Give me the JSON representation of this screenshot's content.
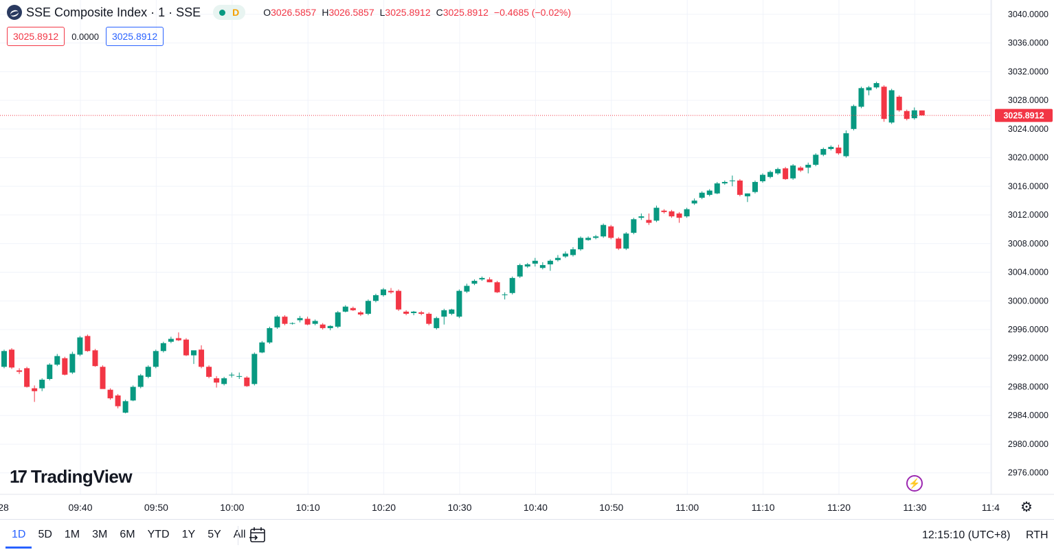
{
  "header": {
    "title": "SSE Composite Index · 1 · SSE",
    "status_letter": "D",
    "open_label": "O",
    "open_value": "3026.5857",
    "high_label": "H",
    "high_value": "3026.5857",
    "low_label": "L",
    "low_value": "3025.8912",
    "close_label": "C",
    "close_value": "3025.8912",
    "change": "−0.4685 (−0.02%)",
    "sell_price": "3025.8912",
    "spread": "0.0000",
    "buy_price": "3025.8912"
  },
  "logo_text": "TradingView",
  "bottom": {
    "ranges": [
      "1D",
      "5D",
      "1M",
      "3M",
      "6M",
      "YTD",
      "1Y",
      "5Y",
      "All"
    ],
    "active_range": "1D",
    "clock": "12:15:10 (UTC+8)",
    "session": "RTH"
  },
  "icons": {
    "bolt": "lightning-icon",
    "gear": "gear-icon",
    "goto": "goto-date-icon"
  },
  "colors": {
    "up": "#089981",
    "down": "#f23645",
    "accent": "#2962ff",
    "grid": "#f0f3fa"
  },
  "chart_data": {
    "type": "candlestick",
    "title": "SSE Composite Index · 1 · SSE",
    "ylim": [
      2973,
      3042
    ],
    "yticks": [
      "3040.0000",
      "3036.0000",
      "3032.0000",
      "3028.0000",
      "3024.0000",
      "3020.0000",
      "3016.0000",
      "3012.0000",
      "3008.0000",
      "3004.0000",
      "3000.0000",
      "2996.0000",
      "2992.0000",
      "2988.0000",
      "2984.0000",
      "2980.0000",
      "2976.0000"
    ],
    "xticks": [
      "28",
      "09:40",
      "09:50",
      "10:00",
      "10:10",
      "10:20",
      "10:30",
      "10:40",
      "10:50",
      "11:00",
      "11:10",
      "11:20",
      "11:30",
      "11:4"
    ],
    "last_price": "3025.8912",
    "candles": [
      [
        2990.8,
        2993.2,
        2990.6,
        2993.0
      ],
      [
        2993.2,
        2993.4,
        2990.5,
        2990.7
      ],
      [
        2990.3,
        2990.6,
        2989.8,
        2990.1
      ],
      [
        2990.6,
        2990.8,
        2987.9,
        2988.0
      ],
      [
        2987.8,
        2988.2,
        2985.9,
        2987.4
      ],
      [
        2987.8,
        2989.2,
        2987.4,
        2989.0
      ],
      [
        2989.1,
        2991.3,
        2988.9,
        2991.1
      ],
      [
        2991.1,
        2992.6,
        2990.9,
        2992.3
      ],
      [
        2992.0,
        2992.2,
        2989.6,
        2989.7
      ],
      [
        2990.0,
        2992.9,
        2989.8,
        2992.6
      ],
      [
        2992.5,
        2995.1,
        2992.3,
        2994.9
      ],
      [
        2995.1,
        2995.3,
        2992.9,
        2993.0
      ],
      [
        2993.1,
        2993.3,
        2990.8,
        2990.9
      ],
      [
        2990.8,
        2991.0,
        2987.8,
        2987.7
      ],
      [
        2987.6,
        2987.8,
        2986.2,
        2986.4
      ],
      [
        2986.8,
        2987.0,
        2985.0,
        2985.3
      ],
      [
        2984.4,
        2986.2,
        2984.3,
        2986.0
      ],
      [
        2986.1,
        2988.2,
        2986.0,
        2988.0
      ],
      [
        2988.0,
        2989.8,
        2987.8,
        2989.6
      ],
      [
        2989.4,
        2991.0,
        2989.2,
        2990.8
      ],
      [
        2990.8,
        2993.2,
        2990.6,
        2993.0
      ],
      [
        2993.0,
        2994.3,
        2992.8,
        2994.1
      ],
      [
        2994.3,
        2995.0,
        2994.1,
        2994.7
      ],
      [
        2994.8,
        2995.6,
        2994.4,
        2994.5
      ],
      [
        2994.6,
        2994.8,
        2992.3,
        2992.4
      ],
      [
        2992.4,
        2992.8,
        2991.2,
        2993.1
      ],
      [
        2993.2,
        2993.8,
        2990.6,
        2990.8
      ],
      [
        2990.8,
        2991.0,
        2989.2,
        2989.4
      ],
      [
        2989.2,
        2989.5,
        2987.9,
        2988.6
      ],
      [
        2988.4,
        2989.4,
        2988.2,
        2989.2
      ],
      [
        2989.6,
        2990.0,
        2989.3,
        2989.7
      ],
      [
        2989.4,
        2990.0,
        2989.1,
        2989.5
      ],
      [
        2989.3,
        2989.5,
        2988.0,
        2988.1
      ],
      [
        2988.4,
        2992.8,
        2988.2,
        2992.6
      ],
      [
        2992.8,
        2994.4,
        2992.7,
        2994.2
      ],
      [
        2994.2,
        2996.4,
        2994.0,
        2996.2
      ],
      [
        2996.3,
        2998.0,
        2996.1,
        2997.8
      ],
      [
        2997.8,
        2998.0,
        2996.6,
        2996.8
      ],
      [
        2996.9,
        2997.0,
        2996.7,
        2996.9
      ],
      [
        2997.3,
        2997.9,
        2997.0,
        2997.6
      ],
      [
        2997.5,
        2997.8,
        2996.6,
        2996.7
      ],
      [
        2996.8,
        2997.4,
        2996.6,
        2997.2
      ],
      [
        2996.7,
        2996.9,
        2996.0,
        2996.2
      ],
      [
        2996.2,
        2996.6,
        2995.9,
        2996.5
      ],
      [
        2996.4,
        2998.6,
        2996.2,
        2998.4
      ],
      [
        2998.5,
        2999.4,
        2998.4,
        2999.2
      ],
      [
        2999.0,
        2999.2,
        2998.6,
        2998.7
      ],
      [
        2998.4,
        2998.6,
        2997.9,
        2998.1
      ],
      [
        2998.2,
        3000.2,
        2998.0,
        3000.0
      ],
      [
        3000.0,
        3001.0,
        2999.8,
        3000.8
      ],
      [
        3000.8,
        3001.8,
        3000.6,
        3001.6
      ],
      [
        3001.4,
        3001.8,
        3001.0,
        3001.2
      ],
      [
        3001.4,
        3001.6,
        2998.6,
        2998.8
      ],
      [
        2998.5,
        2998.7,
        2998.0,
        2998.2
      ],
      [
        2998.3,
        2998.6,
        2998.0,
        2998.5
      ],
      [
        2998.4,
        2998.6,
        2998.0,
        2998.2
      ],
      [
        2998.2,
        2998.4,
        2996.6,
        2996.8
      ],
      [
        2996.2,
        2997.8,
        2996.0,
        2997.6
      ],
      [
        2997.8,
        2998.9,
        2996.7,
        2998.7
      ],
      [
        2998.2,
        2998.9,
        2998.0,
        2998.8
      ],
      [
        2997.8,
        3001.6,
        2997.6,
        3001.4
      ],
      [
        3001.3,
        3002.4,
        3001.1,
        3002.1
      ],
      [
        3002.4,
        3003.0,
        3002.2,
        3002.8
      ],
      [
        3003.0,
        3003.4,
        3002.8,
        3003.2
      ],
      [
        3003.0,
        3003.3,
        3002.6,
        3002.6
      ],
      [
        3002.6,
        3002.8,
        3001.1,
        3001.2
      ],
      [
        3000.8,
        3001.2,
        3000.2,
        3000.9
      ],
      [
        3001.1,
        3003.4,
        3000.9,
        3003.2
      ],
      [
        3003.4,
        3005.2,
        3003.2,
        3005.0
      ],
      [
        3004.8,
        3005.3,
        3004.6,
        3005.1
      ],
      [
        3005.2,
        3006.0,
        3004.8,
        3005.6
      ],
      [
        3004.6,
        3005.4,
        3004.4,
        3005.0
      ],
      [
        3005.1,
        3005.8,
        3004.2,
        3005.6
      ],
      [
        3005.7,
        3006.4,
        3005.5,
        3006.0
      ],
      [
        3006.2,
        3006.9,
        3006.0,
        3006.6
      ],
      [
        3006.4,
        3007.5,
        3006.2,
        3007.2
      ],
      [
        3007.2,
        3009.0,
        3007.0,
        3008.8
      ],
      [
        3008.5,
        3009.0,
        3008.4,
        3008.8
      ],
      [
        3008.8,
        3009.2,
        3008.6,
        3009.0
      ],
      [
        3009.0,
        3010.8,
        3008.8,
        3010.6
      ],
      [
        3010.4,
        3010.6,
        3008.6,
        3008.8
      ],
      [
        3008.7,
        3008.9,
        3007.1,
        3007.3
      ],
      [
        3007.3,
        3009.6,
        3007.1,
        3009.4
      ],
      [
        3009.5,
        3011.6,
        3009.3,
        3011.4
      ],
      [
        3011.6,
        3012.2,
        3011.3,
        3011.8
      ],
      [
        3011.3,
        3012.2,
        3010.6,
        3010.9
      ],
      [
        3011.2,
        3013.3,
        3011.0,
        3013.0
      ],
      [
        3012.6,
        3012.8,
        3012.2,
        3012.4
      ],
      [
        3012.5,
        3012.7,
        3011.6,
        3011.8
      ],
      [
        3012.2,
        3012.4,
        3010.9,
        3011.6
      ],
      [
        3011.8,
        3013.0,
        3011.6,
        3012.8
      ],
      [
        3013.6,
        3014.3,
        3013.4,
        3014.0
      ],
      [
        3014.4,
        3015.3,
        3014.2,
        3015.1
      ],
      [
        3014.8,
        3015.6,
        3014.6,
        3015.4
      ],
      [
        3015.0,
        3016.6,
        3014.9,
        3016.4
      ],
      [
        3016.4,
        3016.8,
        3016.2,
        3016.6
      ],
      [
        3016.7,
        3017.5,
        3016.0,
        3016.8
      ],
      [
        3016.8,
        3017.0,
        3014.6,
        3014.8
      ],
      [
        3014.6,
        3015.0,
        3013.8,
        3015.0
      ],
      [
        3015.2,
        3016.8,
        3015.0,
        3016.6
      ],
      [
        3016.7,
        3017.8,
        3016.5,
        3017.6
      ],
      [
        3017.3,
        3018.2,
        3017.1,
        3018.0
      ],
      [
        3017.8,
        3018.6,
        3017.6,
        3018.4
      ],
      [
        3018.5,
        3018.7,
        3016.9,
        3017.0
      ],
      [
        3017.1,
        3019.1,
        3016.9,
        3018.9
      ],
      [
        3018.6,
        3018.8,
        3018.0,
        3018.2
      ],
      [
        3018.6,
        3019.3,
        3017.8,
        3019.0
      ],
      [
        3019.0,
        3020.6,
        3018.8,
        3020.4
      ],
      [
        3020.4,
        3021.4,
        3020.2,
        3021.2
      ],
      [
        3021.2,
        3021.7,
        3021.0,
        3021.5
      ],
      [
        3021.4,
        3021.8,
        3020.4,
        3020.6
      ],
      [
        3020.2,
        3023.8,
        3020.0,
        3023.4
      ],
      [
        3024.0,
        3027.4,
        3023.8,
        3027.2
      ],
      [
        3027.1,
        3029.9,
        3026.9,
        3029.7
      ],
      [
        3029.4,
        3030.0,
        3028.7,
        3029.8
      ],
      [
        3029.8,
        3030.6,
        3029.6,
        3030.4
      ],
      [
        3029.9,
        3030.1,
        3025.0,
        3025.4
      ],
      [
        3024.9,
        3029.6,
        3024.7,
        3029.4
      ],
      [
        3028.5,
        3028.7,
        3026.4,
        3026.6
      ],
      [
        3026.5,
        3026.7,
        3025.2,
        3025.4
      ],
      [
        3025.5,
        3027.0,
        3025.3,
        3026.6
      ],
      [
        3026.5857,
        3026.5857,
        3025.8912,
        3025.8912
      ]
    ]
  }
}
